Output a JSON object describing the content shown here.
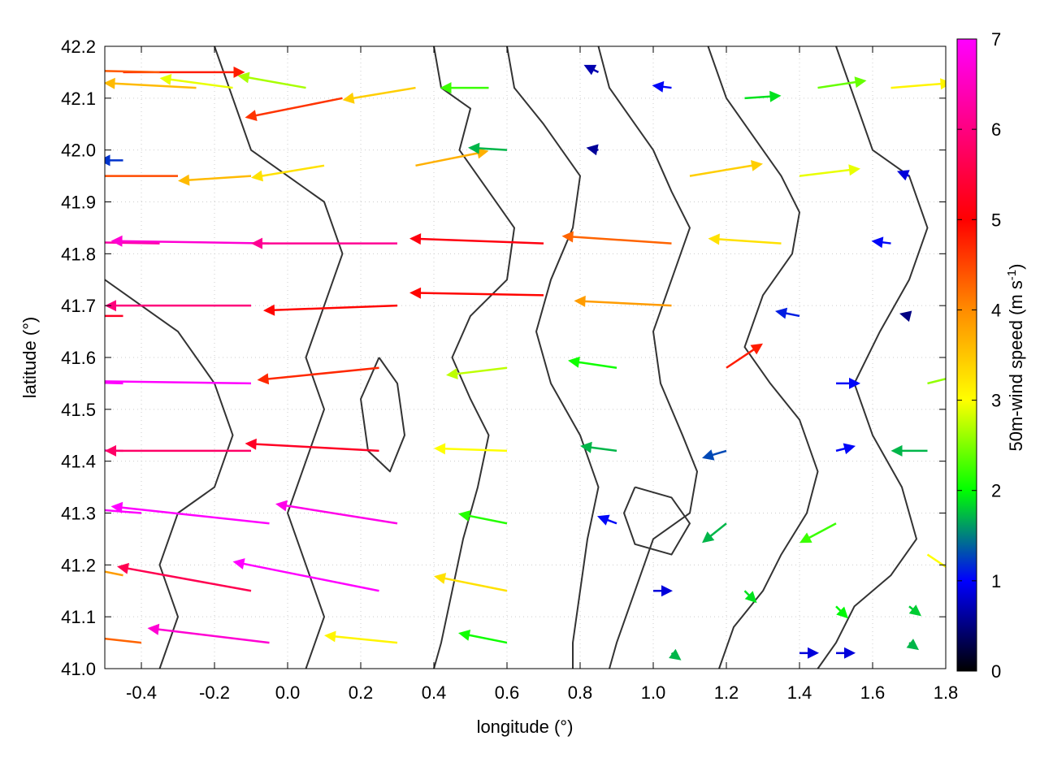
{
  "chart_data": {
    "type": "vector-field",
    "xlabel": "longitude (°)",
    "ylabel": "latitude (°)",
    "colorbar_label": "50m-wind speed (m s-1)",
    "colorbar_label_base": "50m-wind speed (m s",
    "colorbar_label_sup": "-1",
    "colorbar_label_end": ")",
    "xlim": [
      -0.5,
      1.8
    ],
    "ylim": [
      41.0,
      42.2
    ],
    "xticks": [
      "-0.4",
      "-0.2",
      "0.0",
      "0.2",
      "0.4",
      "0.6",
      "0.8",
      "1.0",
      "1.2",
      "1.4",
      "1.6",
      "1.8"
    ],
    "xtick_values": [
      -0.4,
      -0.2,
      0.0,
      0.2,
      0.4,
      0.6,
      0.8,
      1.0,
      1.2,
      1.4,
      1.6,
      1.8
    ],
    "yticks": [
      "41.0",
      "41.1",
      "41.2",
      "41.3",
      "41.4",
      "41.5",
      "41.6",
      "41.7",
      "41.8",
      "41.9",
      "42.0",
      "42.1",
      "42.2"
    ],
    "ytick_values": [
      41.0,
      41.1,
      41.2,
      41.3,
      41.4,
      41.5,
      41.6,
      41.7,
      41.8,
      41.9,
      42.0,
      42.1,
      42.2
    ],
    "colorbar_range": [
      0,
      7
    ],
    "colorbar_ticks": [
      "0",
      "1",
      "2",
      "3",
      "4",
      "5",
      "6",
      "7"
    ],
    "colorbar_tick_values": [
      0,
      1,
      2,
      3,
      4,
      5,
      6,
      7
    ],
    "colormap": [
      "#000000",
      "#0000ff",
      "#00ff00",
      "#ffff00",
      "#ff8c00",
      "#ff0000",
      "#ff00ff"
    ],
    "grid": true,
    "contour_color": "#333333",
    "vectors": [
      {
        "lon": -0.45,
        "lat": 42.15,
        "u": 5.0,
        "v": 0.0,
        "speed": 5.6
      },
      {
        "lon": -0.35,
        "lat": 42.15,
        "u": -4.5,
        "v": 0.1,
        "speed": 5.1
      },
      {
        "lon": -0.25,
        "lat": 42.12,
        "u": -3.8,
        "v": 0.2,
        "speed": 4.2
      },
      {
        "lon": -0.15,
        "lat": 42.12,
        "u": -3.0,
        "v": 0.4,
        "speed": 3.4
      },
      {
        "lon": 0.05,
        "lat": 42.12,
        "u": -2.8,
        "v": 0.5,
        "speed": 3.1
      },
      {
        "lon": 0.15,
        "lat": 42.1,
        "u": -4.0,
        "v": -0.8,
        "speed": 5.4
      },
      {
        "lon": 0.35,
        "lat": 42.12,
        "u": -3.0,
        "v": -0.5,
        "speed": 4.0
      },
      {
        "lon": 0.55,
        "lat": 42.12,
        "u": -2.0,
        "v": 0.0,
        "speed": 2.6
      },
      {
        "lon": 0.85,
        "lat": 42.15,
        "u": -0.6,
        "v": 0.3,
        "speed": 0.8
      },
      {
        "lon": 1.05,
        "lat": 42.12,
        "u": -0.8,
        "v": 0.1,
        "speed": 1.2
      },
      {
        "lon": 1.25,
        "lat": 42.1,
        "u": 1.5,
        "v": 0.1,
        "speed": 2.2
      },
      {
        "lon": 1.45,
        "lat": 42.12,
        "u": 2.0,
        "v": 0.3,
        "speed": 2.8
      },
      {
        "lon": 1.65,
        "lat": 42.12,
        "u": 2.5,
        "v": 0.2,
        "speed": 3.6
      },
      {
        "lon": -0.45,
        "lat": 41.98,
        "u": -1.0,
        "v": 0.0,
        "speed": 1.4
      },
      {
        "lon": -0.3,
        "lat": 41.95,
        "u": -4.0,
        "v": 0.0,
        "speed": 5.2
      },
      {
        "lon": -0.1,
        "lat": 41.95,
        "u": -3.0,
        "v": -0.2,
        "speed": 4.2
      },
      {
        "lon": 0.1,
        "lat": 41.97,
        "u": -3.0,
        "v": -0.5,
        "speed": 3.8
      },
      {
        "lon": 0.35,
        "lat": 41.97,
        "u": 3.0,
        "v": 0.6,
        "speed": 4.3
      },
      {
        "lon": 0.6,
        "lat": 42.0,
        "u": -1.6,
        "v": 0.1,
        "speed": 2.0
      },
      {
        "lon": 0.85,
        "lat": 42.0,
        "u": -0.5,
        "v": 0.1,
        "speed": 0.7
      },
      {
        "lon": 1.1,
        "lat": 41.95,
        "u": 3.0,
        "v": 0.5,
        "speed": 4.0
      },
      {
        "lon": 1.4,
        "lat": 41.95,
        "u": 2.5,
        "v": 0.3,
        "speed": 3.4
      },
      {
        "lon": 1.7,
        "lat": 41.95,
        "u": -0.5,
        "v": 0.2,
        "speed": 1.0
      },
      {
        "lon": -0.35,
        "lat": 41.82,
        "u": -6.0,
        "v": 0.1,
        "speed": 6.6
      },
      {
        "lon": -0.05,
        "lat": 41.82,
        "u": -6.5,
        "v": 0.1,
        "speed": 6.8
      },
      {
        "lon": 0.3,
        "lat": 41.82,
        "u": -6.0,
        "v": 0.0,
        "speed": 6.5
      },
      {
        "lon": 0.7,
        "lat": 41.82,
        "u": -5.5,
        "v": 0.2,
        "speed": 5.9
      },
      {
        "lon": 1.05,
        "lat": 41.82,
        "u": -4.5,
        "v": 0.3,
        "speed": 5.0
      },
      {
        "lon": 1.35,
        "lat": 41.82,
        "u": -3.0,
        "v": 0.2,
        "speed": 3.8
      },
      {
        "lon": 1.65,
        "lat": 41.82,
        "u": -0.8,
        "v": 0.1,
        "speed": 1.2
      },
      {
        "lon": -0.45,
        "lat": 41.68,
        "u": -5.5,
        "v": 0.0,
        "speed": 6.0
      },
      {
        "lon": -0.1,
        "lat": 41.7,
        "u": -6.0,
        "v": 0.0,
        "speed": 6.4
      },
      {
        "lon": 0.3,
        "lat": 41.7,
        "u": -5.5,
        "v": -0.2,
        "speed": 5.8
      },
      {
        "lon": 0.7,
        "lat": 41.72,
        "u": -5.5,
        "v": 0.1,
        "speed": 5.8
      },
      {
        "lon": 1.05,
        "lat": 41.7,
        "u": -4.0,
        "v": 0.2,
        "speed": 4.5
      },
      {
        "lon": 1.4,
        "lat": 41.68,
        "u": -1.0,
        "v": 0.2,
        "speed": 1.3
      },
      {
        "lon": 1.7,
        "lat": 41.68,
        "u": -0.4,
        "v": 0.1,
        "speed": 0.6
      },
      {
        "lon": -0.45,
        "lat": 41.55,
        "u": -7.0,
        "v": 0.2,
        "speed": 7.0
      },
      {
        "lon": -0.1,
        "lat": 41.55,
        "u": -7.0,
        "v": 0.1,
        "speed": 7.0
      },
      {
        "lon": 0.25,
        "lat": 41.58,
        "u": -5.0,
        "v": -0.5,
        "speed": 5.5
      },
      {
        "lon": 0.6,
        "lat": 41.58,
        "u": -2.5,
        "v": -0.3,
        "speed": 3.2
      },
      {
        "lon": 0.9,
        "lat": 41.58,
        "u": -2.0,
        "v": 0.3,
        "speed": 2.4
      },
      {
        "lon": 1.2,
        "lat": 41.58,
        "u": 1.5,
        "v": 1.0,
        "speed": 5.6
      },
      {
        "lon": 1.5,
        "lat": 41.55,
        "u": 1.0,
        "v": 0.0,
        "speed": 1.2
      },
      {
        "lon": 1.75,
        "lat": 41.55,
        "u": 2.0,
        "v": 0.5,
        "speed": 3.0
      },
      {
        "lon": -0.45,
        "lat": 41.42,
        "u": -6.5,
        "v": 0.1,
        "speed": 6.8
      },
      {
        "lon": -0.1,
        "lat": 41.42,
        "u": -6.0,
        "v": 0.0,
        "speed": 6.3
      },
      {
        "lon": 0.25,
        "lat": 41.42,
        "u": -5.5,
        "v": 0.3,
        "speed": 6.0
      },
      {
        "lon": 0.6,
        "lat": 41.42,
        "u": -3.0,
        "v": 0.1,
        "speed": 3.5
      },
      {
        "lon": 0.9,
        "lat": 41.42,
        "u": -1.5,
        "v": 0.2,
        "speed": 2.0
      },
      {
        "lon": 1.2,
        "lat": 41.42,
        "u": -1.0,
        "v": -0.3,
        "speed": 1.5
      },
      {
        "lon": 1.5,
        "lat": 41.42,
        "u": 0.8,
        "v": 0.2,
        "speed": 1.2
      },
      {
        "lon": 1.75,
        "lat": 41.42,
        "u": -1.5,
        "v": 0.0,
        "speed": 2.0
      },
      {
        "lon": -0.4,
        "lat": 41.3,
        "u": -6.5,
        "v": 0.5,
        "speed": 7.0
      },
      {
        "lon": -0.05,
        "lat": 41.28,
        "u": -6.5,
        "v": 0.7,
        "speed": 7.0
      },
      {
        "lon": 0.3,
        "lat": 41.28,
        "u": -5.0,
        "v": 0.8,
        "speed": 6.9
      },
      {
        "lon": 0.6,
        "lat": 41.28,
        "u": -2.0,
        "v": 0.4,
        "speed": 2.5
      },
      {
        "lon": 0.9,
        "lat": 41.28,
        "u": -0.8,
        "v": 0.3,
        "speed": 1.2
      },
      {
        "lon": 1.2,
        "lat": 41.28,
        "u": -1.0,
        "v": -0.8,
        "speed": 2.0
      },
      {
        "lon": 1.5,
        "lat": 41.28,
        "u": -1.5,
        "v": -0.8,
        "speed": 2.6
      },
      {
        "lon": 1.75,
        "lat": 41.22,
        "u": 1.5,
        "v": -1.0,
        "speed": 3.5
      },
      {
        "lon": -0.45,
        "lat": 41.18,
        "u": -4.0,
        "v": 0.8,
        "speed": 4.5
      },
      {
        "lon": -0.1,
        "lat": 41.15,
        "u": -5.5,
        "v": 1.0,
        "speed": 6.2
      },
      {
        "lon": 0.25,
        "lat": 41.15,
        "u": -6.0,
        "v": 1.2,
        "speed": 7.0
      },
      {
        "lon": 0.6,
        "lat": 41.15,
        "u": -3.0,
        "v": 0.6,
        "speed": 3.8
      },
      {
        "lon": 1.0,
        "lat": 41.15,
        "u": 0.8,
        "v": 0.0,
        "speed": 1.0
      },
      {
        "lon": 1.25,
        "lat": 41.15,
        "u": 0.5,
        "v": -0.5,
        "speed": 2.2
      },
      {
        "lon": 1.5,
        "lat": 41.12,
        "u": 0.5,
        "v": -0.5,
        "speed": 2.3
      },
      {
        "lon": 1.7,
        "lat": 41.12,
        "u": 0.5,
        "v": -0.4,
        "speed": 2.1
      },
      {
        "lon": -0.4,
        "lat": 41.05,
        "u": -4.5,
        "v": 0.5,
        "speed": 5.0
      },
      {
        "lon": -0.05,
        "lat": 41.05,
        "u": -5.0,
        "v": 0.6,
        "speed": 6.8
      },
      {
        "lon": 0.3,
        "lat": 41.05,
        "u": -3.0,
        "v": 0.3,
        "speed": 3.6
      },
      {
        "lon": 0.6,
        "lat": 41.05,
        "u": -2.0,
        "v": 0.4,
        "speed": 2.4
      },
      {
        "lon": 1.05,
        "lat": 41.03,
        "u": 0.4,
        "v": -0.3,
        "speed": 2.0
      },
      {
        "lon": 1.4,
        "lat": 41.03,
        "u": 0.8,
        "v": 0.0,
        "speed": 1.0
      },
      {
        "lon": 1.5,
        "lat": 41.03,
        "u": 0.8,
        "v": 0.0,
        "speed": 1.0
      },
      {
        "lon": 1.7,
        "lat": 41.05,
        "u": 0.4,
        "v": -0.3,
        "speed": 2.0
      }
    ],
    "contours": [
      [
        [
          0.4,
          42.2
        ],
        [
          0.42,
          42.12
        ],
        [
          0.5,
          42.08
        ],
        [
          0.47,
          42.0
        ],
        [
          0.55,
          41.92
        ],
        [
          0.62,
          41.85
        ],
        [
          0.6,
          41.75
        ],
        [
          0.5,
          41.68
        ],
        [
          0.45,
          41.6
        ],
        [
          0.5,
          41.52
        ],
        [
          0.55,
          41.45
        ],
        [
          0.52,
          41.35
        ],
        [
          0.48,
          41.25
        ],
        [
          0.45,
          41.15
        ],
        [
          0.42,
          41.05
        ],
        [
          0.4,
          41.0
        ]
      ],
      [
        [
          0.6,
          42.2
        ],
        [
          0.62,
          42.12
        ],
        [
          0.7,
          42.05
        ],
        [
          0.75,
          42.0
        ],
        [
          0.8,
          41.95
        ],
        [
          0.78,
          41.85
        ],
        [
          0.72,
          41.75
        ],
        [
          0.68,
          41.65
        ],
        [
          0.72,
          41.55
        ],
        [
          0.8,
          41.45
        ],
        [
          0.85,
          41.35
        ],
        [
          0.82,
          41.25
        ],
        [
          0.8,
          41.15
        ],
        [
          0.78,
          41.05
        ],
        [
          0.78,
          41.0
        ]
      ],
      [
        [
          0.85,
          42.2
        ],
        [
          0.88,
          42.12
        ],
        [
          0.95,
          42.05
        ],
        [
          1.0,
          42.0
        ],
        [
          1.05,
          41.92
        ],
        [
          1.1,
          41.85
        ],
        [
          1.05,
          41.75
        ],
        [
          1.0,
          41.65
        ],
        [
          1.02,
          41.55
        ],
        [
          1.08,
          41.45
        ],
        [
          1.12,
          41.38
        ],
        [
          1.1,
          41.3
        ],
        [
          1.0,
          41.25
        ],
        [
          0.95,
          41.15
        ],
        [
          0.9,
          41.05
        ],
        [
          0.88,
          41.0
        ]
      ],
      [
        [
          1.15,
          42.2
        ],
        [
          1.2,
          42.1
        ],
        [
          1.28,
          42.02
        ],
        [
          1.35,
          41.95
        ],
        [
          1.4,
          41.88
        ],
        [
          1.38,
          41.8
        ],
        [
          1.3,
          41.72
        ],
        [
          1.25,
          41.62
        ],
        [
          1.32,
          41.55
        ],
        [
          1.4,
          41.48
        ],
        [
          1.45,
          41.38
        ],
        [
          1.42,
          41.3
        ],
        [
          1.35,
          41.22
        ],
        [
          1.3,
          41.15
        ],
        [
          1.22,
          41.08
        ],
        [
          1.18,
          41.0
        ]
      ],
      [
        [
          -0.5,
          41.75
        ],
        [
          -0.4,
          41.7
        ],
        [
          -0.3,
          41.65
        ],
        [
          -0.2,
          41.55
        ],
        [
          -0.15,
          41.45
        ],
        [
          -0.2,
          41.35
        ],
        [
          -0.3,
          41.3
        ],
        [
          -0.35,
          41.2
        ],
        [
          -0.3,
          41.1
        ],
        [
          -0.35,
          41.0
        ]
      ],
      [
        [
          -0.2,
          42.2
        ],
        [
          -0.15,
          42.1
        ],
        [
          -0.1,
          42.0
        ],
        [
          0.0,
          41.95
        ],
        [
          0.1,
          41.9
        ],
        [
          0.15,
          41.8
        ],
        [
          0.1,
          41.7
        ],
        [
          0.05,
          41.6
        ],
        [
          0.1,
          41.5
        ],
        [
          0.05,
          41.4
        ],
        [
          0.0,
          41.3
        ],
        [
          0.05,
          41.2
        ],
        [
          0.1,
          41.1
        ],
        [
          0.05,
          41.0
        ]
      ],
      [
        [
          1.5,
          42.2
        ],
        [
          1.55,
          42.1
        ],
        [
          1.6,
          42.0
        ],
        [
          1.7,
          41.95
        ],
        [
          1.75,
          41.85
        ],
        [
          1.7,
          41.75
        ],
        [
          1.62,
          41.65
        ],
        [
          1.55,
          41.55
        ],
        [
          1.6,
          41.45
        ],
        [
          1.68,
          41.35
        ],
        [
          1.72,
          41.25
        ],
        [
          1.65,
          41.18
        ],
        [
          1.55,
          41.12
        ],
        [
          1.5,
          41.05
        ],
        [
          1.45,
          41.0
        ]
      ],
      [
        [
          0.25,
          41.6
        ],
        [
          0.3,
          41.55
        ],
        [
          0.32,
          41.45
        ],
        [
          0.28,
          41.38
        ],
        [
          0.22,
          41.42
        ],
        [
          0.2,
          41.52
        ],
        [
          0.25,
          41.6
        ]
      ],
      [
        [
          0.95,
          41.35
        ],
        [
          1.05,
          41.33
        ],
        [
          1.1,
          41.28
        ],
        [
          1.05,
          41.22
        ],
        [
          0.95,
          41.24
        ],
        [
          0.92,
          41.3
        ],
        [
          0.95,
          41.35
        ]
      ]
    ]
  }
}
